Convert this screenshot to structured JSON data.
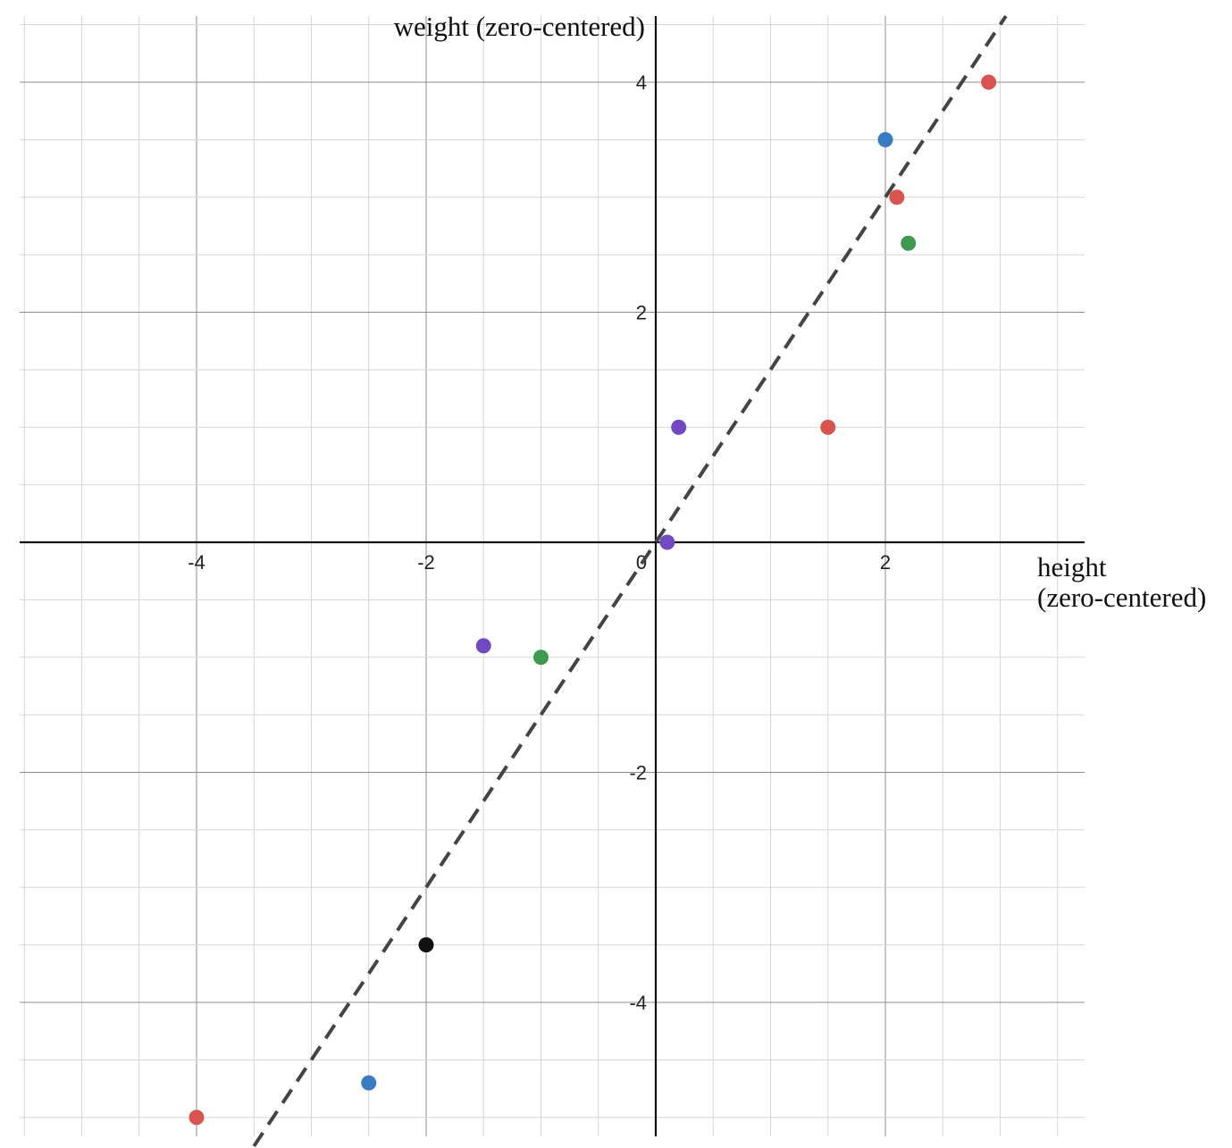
{
  "chart_data": {
    "type": "scatter",
    "title": "",
    "xlabel_lines": [
      "height",
      "(zero-centered)"
    ],
    "ylabel": "weight (zero-centered)",
    "xlim": [
      -5.6,
      3.7
    ],
    "ylim": [
      -5.15,
      4.55
    ],
    "x_ticks": [
      -4,
      -2,
      0,
      2
    ],
    "y_ticks": [
      -4,
      -2,
      2,
      4
    ],
    "x_tick_labels": [
      "-4",
      "-2",
      "0",
      "2"
    ],
    "y_tick_labels": [
      "-4",
      "-2",
      "2",
      "4"
    ],
    "grid": true,
    "minor_grid_step": 0.5,
    "major_grid_step": 2,
    "colors": {
      "red": "#d9534f",
      "blue": "#3a7cc4",
      "green": "#3d9a4f",
      "purple": "#7149c2",
      "black": "#111111",
      "fit_line": "#444444"
    },
    "points": [
      {
        "x": 2.9,
        "y": 4.0,
        "color": "red"
      },
      {
        "x": 2.0,
        "y": 3.5,
        "color": "blue"
      },
      {
        "x": 2.1,
        "y": 3.0,
        "color": "red"
      },
      {
        "x": 2.2,
        "y": 2.6,
        "color": "green"
      },
      {
        "x": 0.2,
        "y": 1.0,
        "color": "purple"
      },
      {
        "x": 1.5,
        "y": 1.0,
        "color": "red"
      },
      {
        "x": 0.1,
        "y": 0.0,
        "color": "purple"
      },
      {
        "x": -1.5,
        "y": -0.9,
        "color": "purple"
      },
      {
        "x": -1.0,
        "y": -1.0,
        "color": "green"
      },
      {
        "x": -2.0,
        "y": -3.5,
        "color": "black"
      },
      {
        "x": -2.5,
        "y": -4.7,
        "color": "blue"
      },
      {
        "x": -4.0,
        "y": -5.0,
        "color": "red"
      }
    ],
    "fit_line": {
      "slope": 1.5,
      "intercept": 0.0,
      "style": "dashed",
      "x_range": [
        -3.5,
        3.05
      ]
    }
  }
}
